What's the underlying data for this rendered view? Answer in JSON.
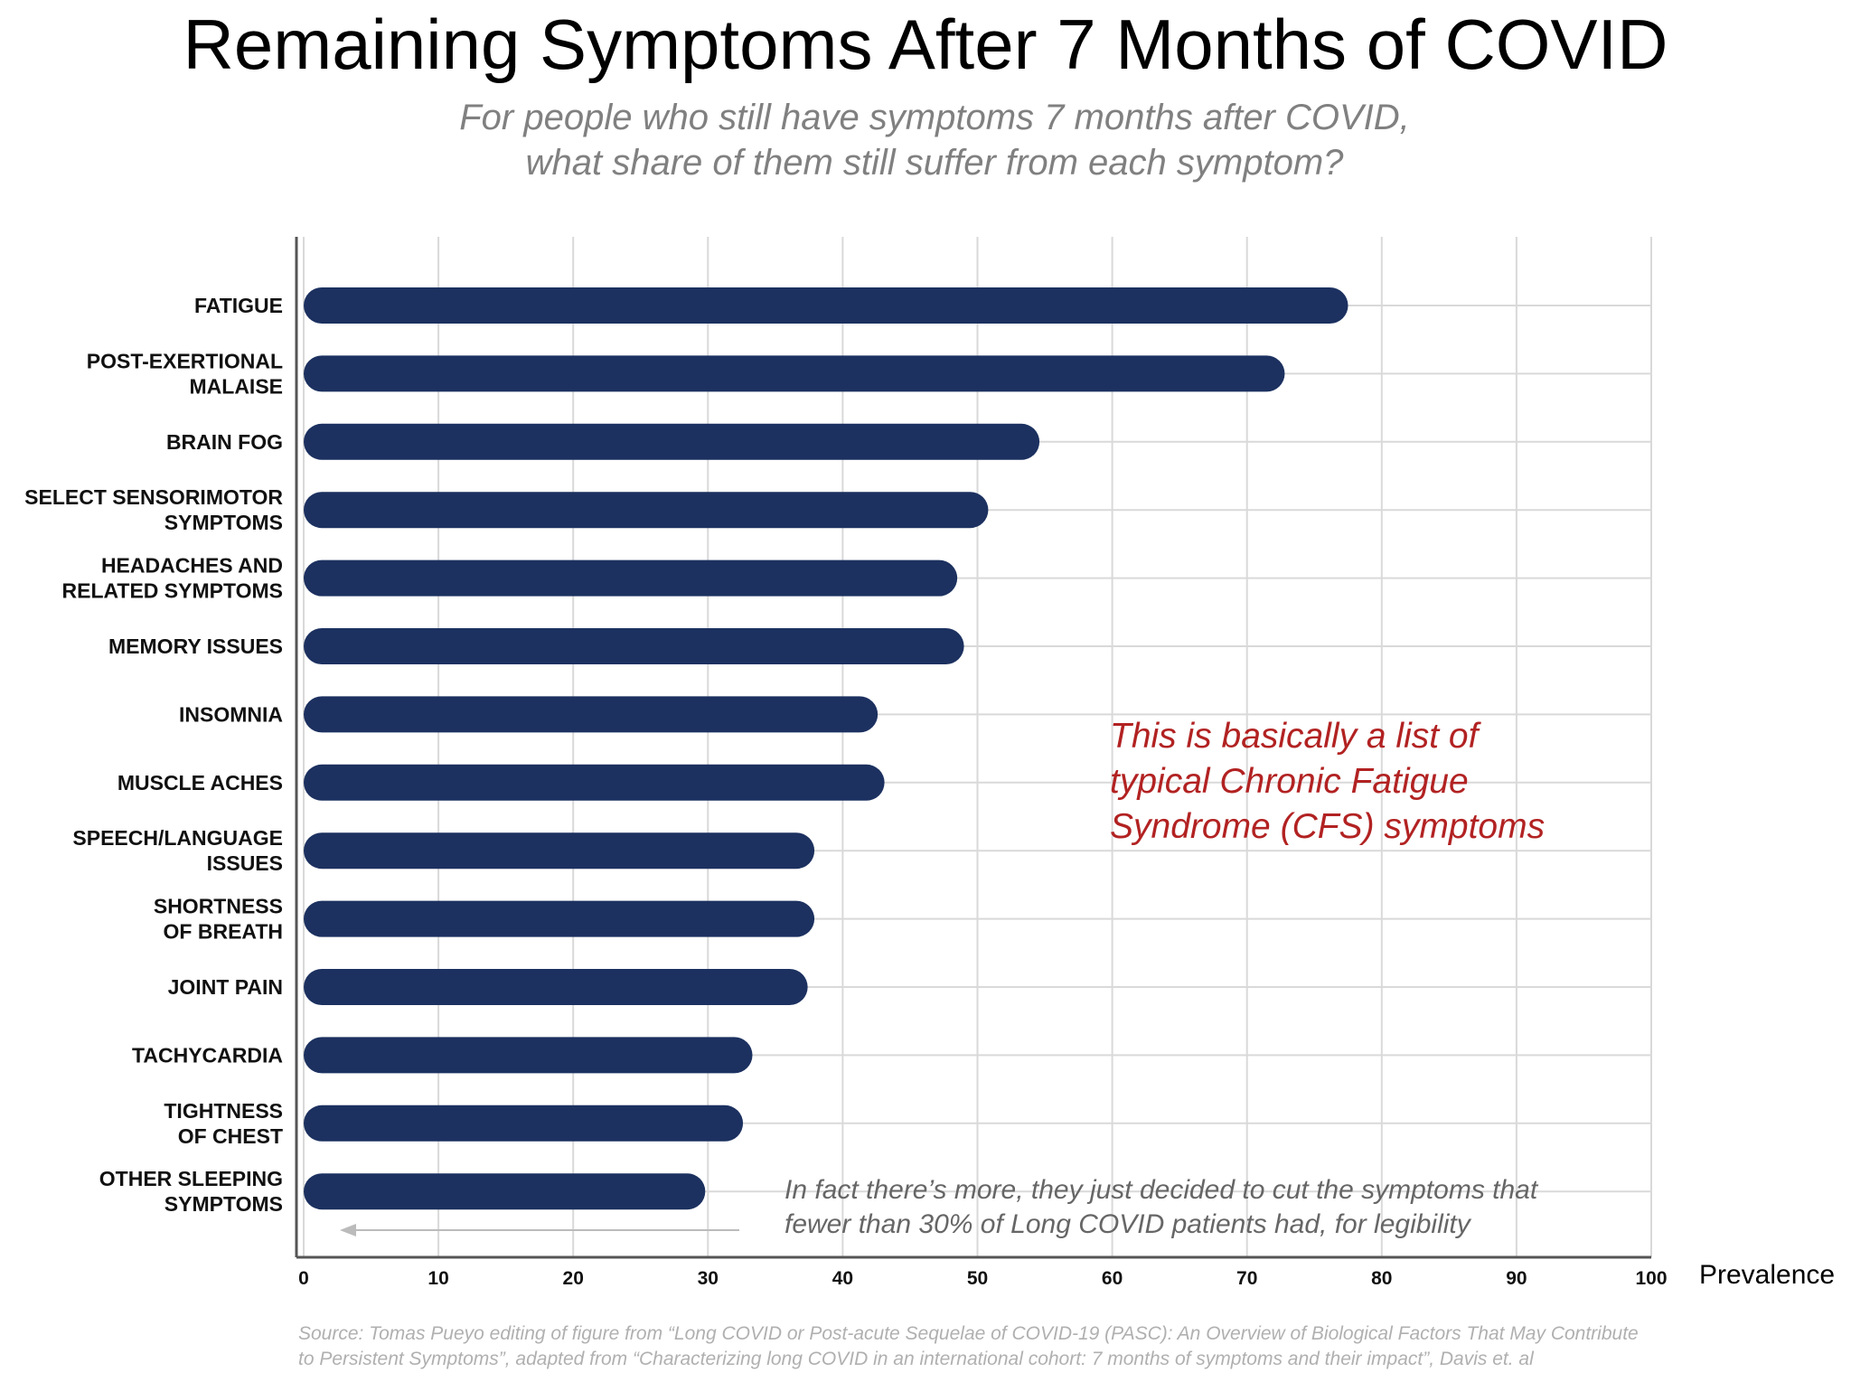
{
  "chart_data": {
    "type": "bar",
    "orientation": "horizontal",
    "title": "Remaining Symptoms After 7 Months of COVID",
    "subtitle": [
      "For people who still have symptoms 7 months after COVID,",
      "what share of them still suffer from each symptom?"
    ],
    "xlabel": "Prevalence",
    "xlim": [
      0,
      100
    ],
    "xticks": [
      "0",
      "10",
      "20",
      "30",
      "40",
      "50",
      "60",
      "70",
      "80",
      "90",
      "100"
    ],
    "grid": true,
    "bar_color": "#1c3160",
    "categories": [
      [
        "FATIGUE"
      ],
      [
        "POST-EXERTIONAL",
        "MALAISE"
      ],
      [
        "BRAIN FOG"
      ],
      [
        "SELECT SENSORIMOTOR",
        "SYMPTOMS"
      ],
      [
        "HEADACHES AND",
        "RELATED SYMPTOMS"
      ],
      [
        "MEMORY ISSUES"
      ],
      [
        "INSOMNIA"
      ],
      [
        "MUSCLE ACHES"
      ],
      [
        "SPEECH/LANGUAGE",
        "ISSUES"
      ],
      [
        "SHORTNESS",
        "OF BREATH"
      ],
      [
        "JOINT PAIN"
      ],
      [
        "TACHYCARDIA"
      ],
      [
        "TIGHTNESS",
        "OF CHEST"
      ],
      [
        "OTHER SLEEPING",
        "SYMPTOMS"
      ]
    ],
    "values": [
      77.5,
      72.8,
      54.6,
      50.8,
      48.5,
      49,
      42.6,
      43.1,
      37.9,
      37.9,
      37.4,
      33.3,
      32.6,
      29.8
    ],
    "annotations": {
      "red_lines": [
        "This is basically a list of",
        "typical Chronic Fatigue",
        "Syndrome (CFS) symptoms"
      ],
      "red_color": "#b22222",
      "grey_lines": [
        "In fact there’s more, they just decided to cut the symptoms that",
        "fewer than 30% of Long COVID patients had, for legibility"
      ]
    },
    "source_lines": [
      "Source: Tomas Pueyo editing of figure from “Long COVID or Post-acute Sequelae of COVID-19 (PASC): An Overview of Biological Factors That May Contribute",
      "to Persistent Symptoms”, adapted from “Characterizing long COVID in an international cohort: 7 months of symptoms and their impact”, Davis et. al"
    ]
  }
}
